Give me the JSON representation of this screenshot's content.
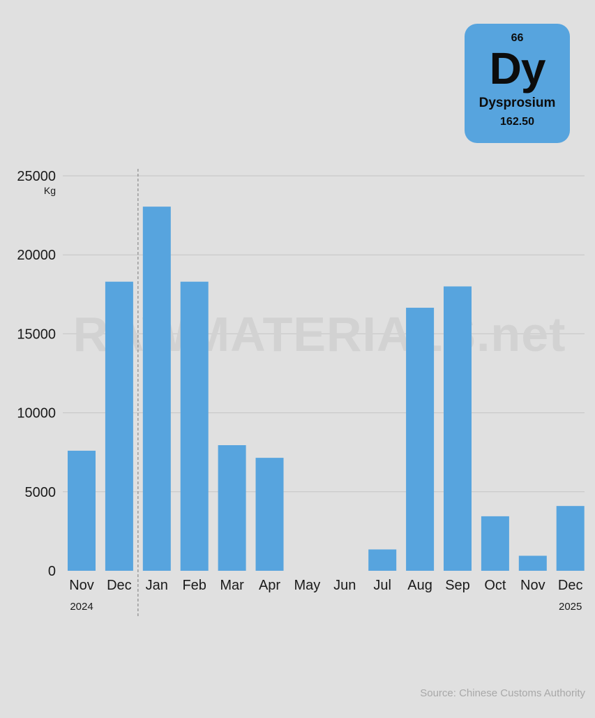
{
  "element": {
    "atomic_number": "66",
    "symbol": "Dy",
    "name": "Dysprosium",
    "atomic_mass": "162.50"
  },
  "watermark": "RAWMATERIALS.net",
  "source": "Source: Chinese Customs Authority",
  "chart_data": {
    "type": "bar",
    "categories": [
      "Nov",
      "Dec",
      "Jan",
      "Feb",
      "Mar",
      "Apr",
      "May",
      "Jun",
      "Jul",
      "Aug",
      "Sep",
      "Oct",
      "Nov",
      "Dec"
    ],
    "year_labels": {
      "start": "2024",
      "end": "2025"
    },
    "values": [
      7600,
      18300,
      23050,
      18300,
      7950,
      7150,
      0,
      0,
      1350,
      16650,
      18000,
      3450,
      950,
      4100
    ],
    "title": "",
    "xlabel": "",
    "ylabel": "",
    "y_unit": "Kg",
    "ylim": [
      0,
      25000
    ],
    "yticks": [
      0,
      5000,
      10000,
      15000,
      20000,
      25000
    ],
    "grid": true,
    "legend": "none",
    "bar_color": "#57a4de"
  }
}
